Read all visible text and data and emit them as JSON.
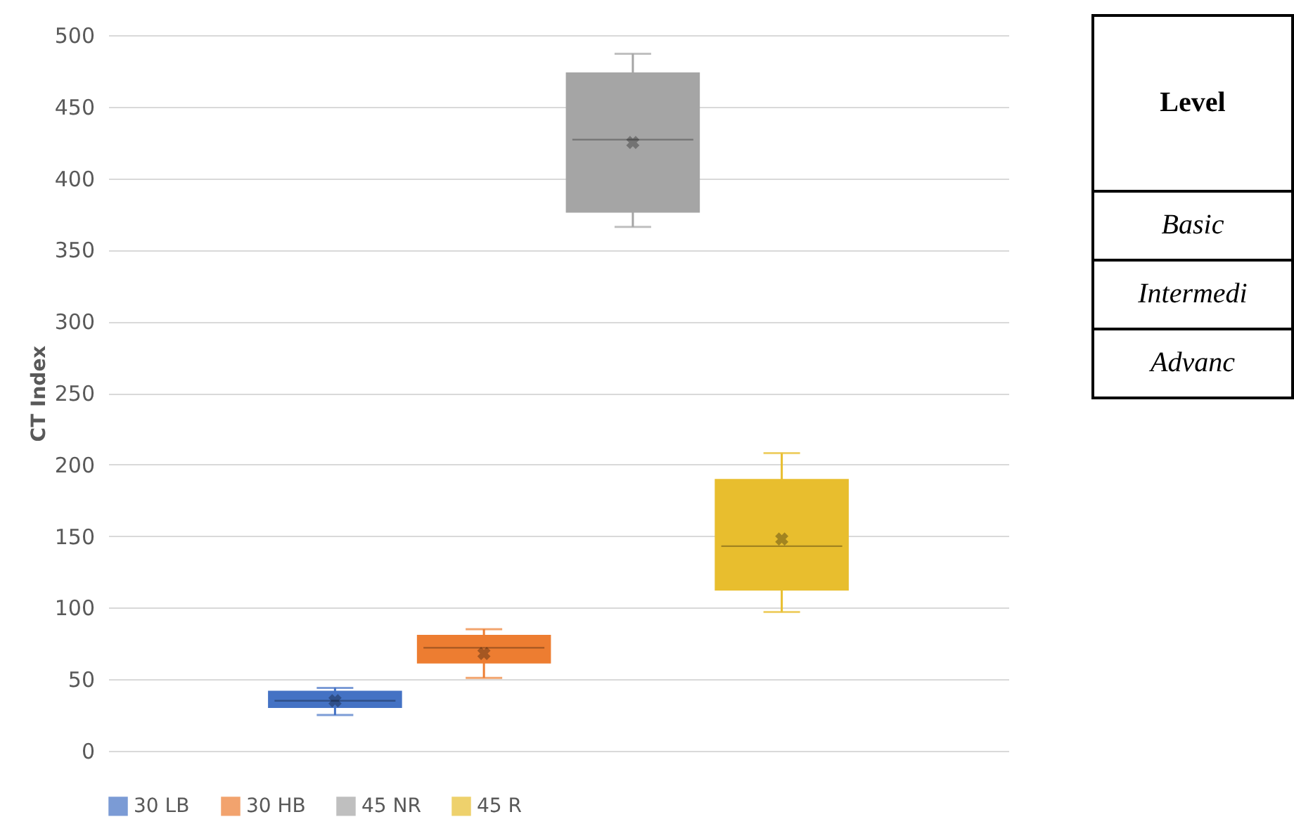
{
  "chart_data": {
    "type": "box",
    "ylabel": "CT Index",
    "categories": [
      null
    ],
    "ylim": [
      0,
      500
    ],
    "yticks": [
      0,
      50,
      100,
      150,
      200,
      250,
      300,
      350,
      400,
      450,
      500
    ],
    "grid": "y",
    "legend": "bottom",
    "series": [
      {
        "name": "30  LB",
        "color": "#4472c4",
        "boxes": [
          {
            "low": 25,
            "q1": 30,
            "median": 35,
            "q3": 42,
            "high": 44,
            "mean": 35
          }
        ]
      },
      {
        "name": "30  HB",
        "color": "#ed7d31",
        "boxes": [
          {
            "low": 51,
            "q1": 61,
            "median": 72,
            "q3": 81,
            "high": 85,
            "mean": 68
          }
        ]
      },
      {
        "name": "45  NR",
        "color": "#a5a5a5",
        "boxes": [
          {
            "low": 366,
            "q1": 376,
            "median": 427,
            "q3": 474,
            "high": 487,
            "mean": 425
          }
        ]
      },
      {
        "name": "45  R",
        "color": "#e8be2e",
        "boxes": [
          {
            "low": 97,
            "q1": 112,
            "median": 143,
            "q3": 190,
            "high": 208,
            "mean": 148
          }
        ]
      }
    ],
    "annotations": [
      "Level",
      "Basic",
      "Intermedi",
      "Advanc"
    ]
  }
}
